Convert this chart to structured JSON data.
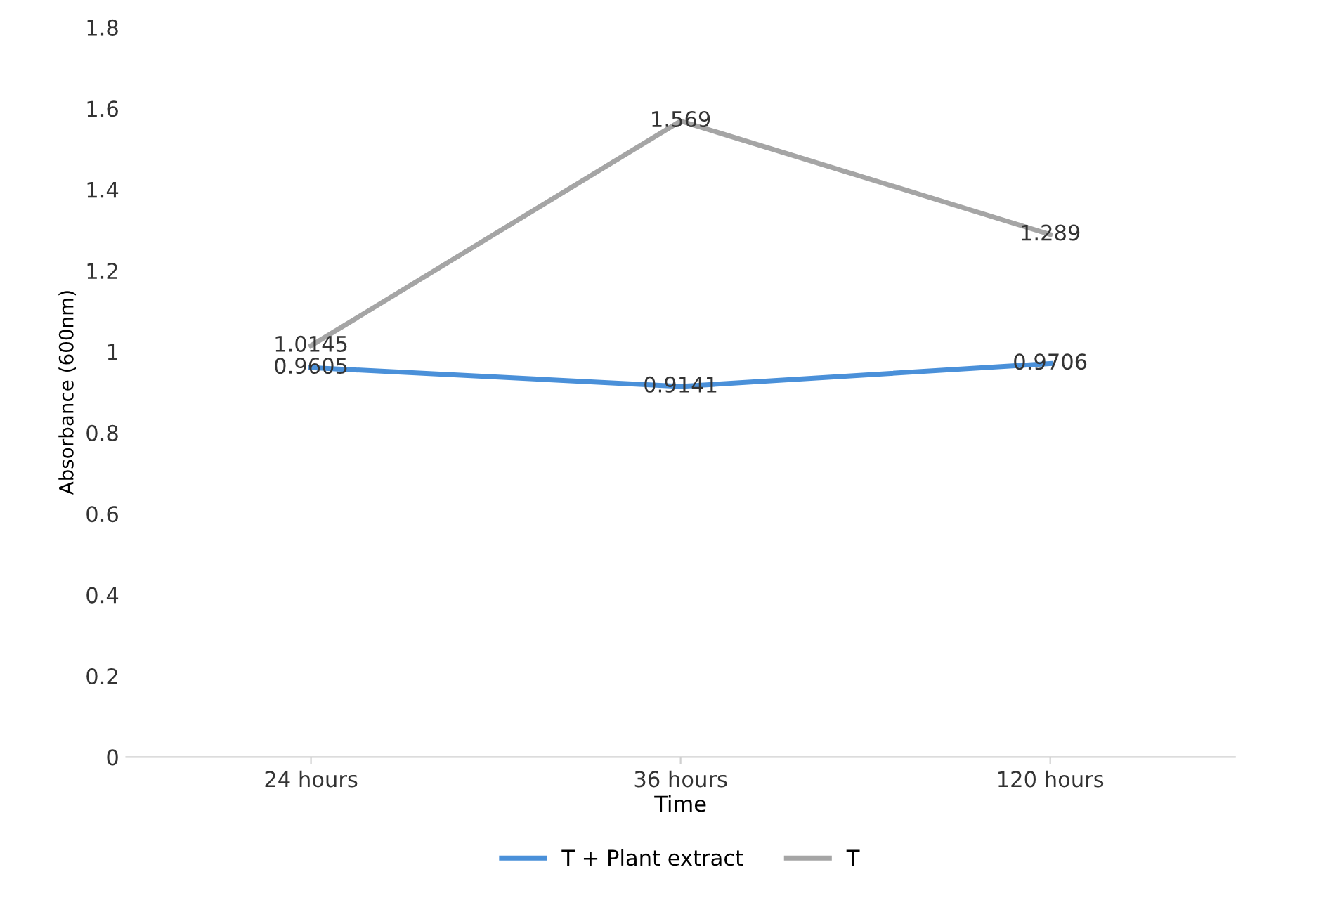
{
  "chart_data": {
    "type": "line",
    "xlabel": "Time",
    "ylabel": "Absorbance (600nm)",
    "categories": [
      "24 hours",
      "36 hours",
      "120 hours"
    ],
    "series": [
      {
        "name": "T + Plant extract",
        "color": "#4a90d9",
        "values": [
          0.9605,
          0.9141,
          0.9706
        ]
      },
      {
        "name": "T",
        "color": "#a5a5a5",
        "values": [
          1.0145,
          1.569,
          1.289
        ]
      }
    ],
    "ylim": [
      0,
      1.8
    ],
    "yticks": [
      0,
      {
        "value": 0.2,
        "label": "0.2"
      },
      {
        "value": 0.4,
        "label": "0.4"
      },
      {
        "value": 0.6,
        "label": "0.6"
      },
      {
        "value": 0.8,
        "label": "0.8"
      },
      1,
      {
        "value": 1.2,
        "label": "1.2"
      },
      {
        "value": 1.4,
        "label": "1.4"
      },
      {
        "value": 1.6,
        "label": "1.6"
      },
      {
        "value": 1.8,
        "label": "1.8"
      }
    ],
    "data_labels": true,
    "legend": "bottom",
    "grid": false,
    "marker": "none",
    "line_style": "solid"
  }
}
